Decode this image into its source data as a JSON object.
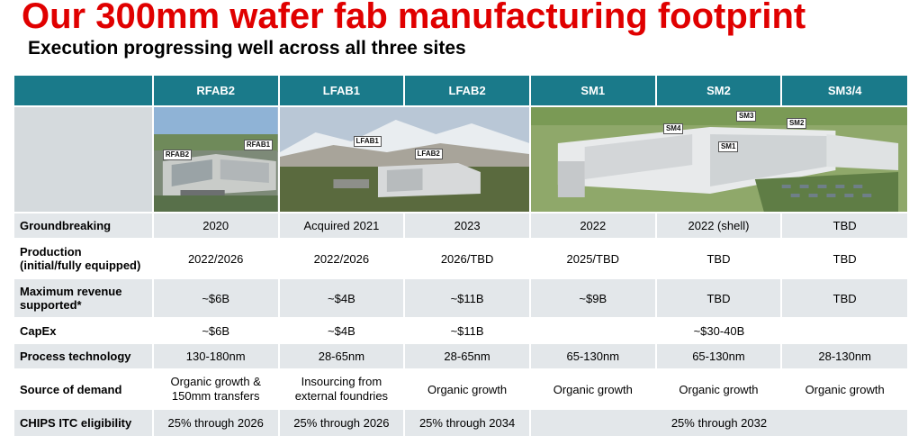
{
  "header": {
    "title": "Our 300mm wafer fab manufacturing footprint",
    "subtitle": "Execution progressing well across all three sites"
  },
  "table": {
    "columns": [
      "RFAB2",
      "LFAB1",
      "LFAB2",
      "SM1",
      "SM2",
      "SM3/4"
    ],
    "photo_tags": {
      "rfab": [
        "RFAB1",
        "RFAB2"
      ],
      "lfab": [
        "LFAB1",
        "LFAB2"
      ],
      "sm": [
        "SM3",
        "SM4",
        "SM2",
        "SM1"
      ]
    },
    "rows": {
      "groundbreaking": {
        "label": "Groundbreaking",
        "values": [
          "2020",
          "Acquired 2021",
          "2023",
          "2022",
          "2022 (shell)",
          "TBD"
        ]
      },
      "production": {
        "label_line1": "Production",
        "label_line2": "(initial/fully equipped)",
        "values": [
          "2022/2026",
          "2022/2026",
          "2026/TBD",
          "2025/TBD",
          "TBD",
          "TBD"
        ]
      },
      "max_revenue": {
        "label_line1": "Maximum revenue",
        "label_line2": "supported*",
        "values": [
          "~$6B",
          "~$4B",
          "~$11B",
          "~$9B",
          "TBD",
          "TBD"
        ]
      },
      "capex": {
        "label": "CapEx",
        "values": [
          "~$6B",
          "~$4B",
          "~$11B"
        ],
        "merged_value": "~$30-40B"
      },
      "process": {
        "label": "Process technology",
        "values": [
          "130-180nm",
          "28-65nm",
          "28-65nm",
          "65-130nm",
          "65-130nm",
          "28-130nm"
        ]
      },
      "demand": {
        "label": "Source of demand",
        "values_line1": [
          "Organic growth &",
          "Insourcing from",
          "Organic growth",
          "Organic growth",
          "Organic growth",
          "Organic growth"
        ],
        "values_line2": [
          "150mm transfers",
          "external foundries",
          "",
          "",
          "",
          ""
        ]
      },
      "chips": {
        "label": "CHIPS ITC eligibility",
        "values": [
          "25% through 2026",
          "25% through 2026",
          "25% through 2034"
        ],
        "merged_value": "25% through 2032"
      }
    }
  },
  "colors": {
    "title_red": "#e00000",
    "header_teal": "#1a7a8a",
    "row_shade": "#e3e7ea"
  }
}
